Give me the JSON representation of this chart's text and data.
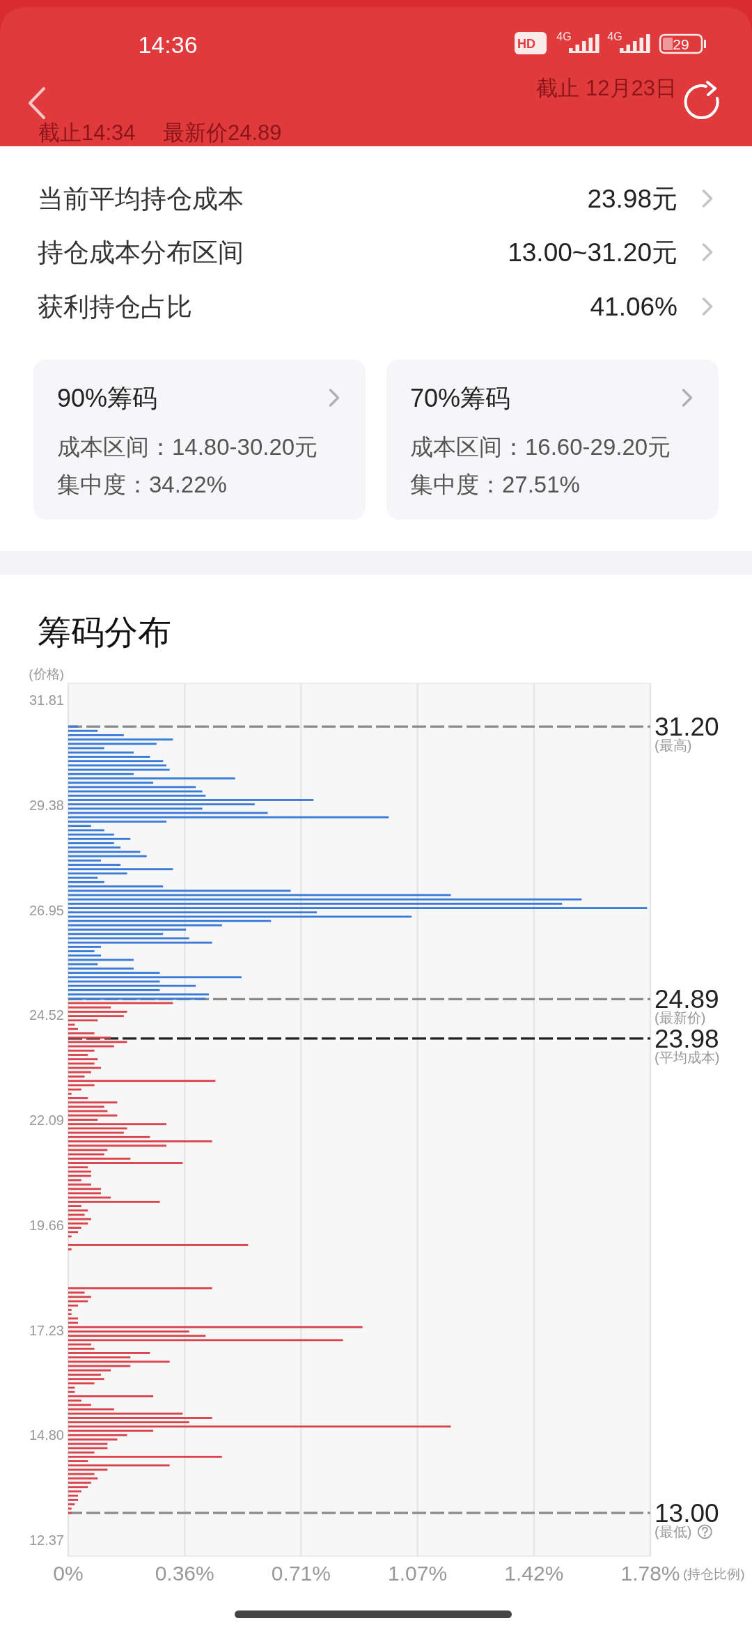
{
  "chart_data": [
    {
      "type": "other",
      "annotations": [
        "14:36",
        "HD",
        "4G",
        "4G",
        "29",
        "截止 12月23日",
        "截止14:34",
        "最新价24.89"
      ]
    },
    {
      "type": "other",
      "annotations": [
        "当前平均持仓成本",
        "23.98元",
        "持仓成本分布区间",
        "13.00~31.20元",
        "获利持仓占比",
        "41.06%"
      ]
    },
    {
      "type": "other",
      "title": "90%筹码",
      "annotations": [
        "成本区间：14.80-30.20元",
        "集中度：34.22%"
      ]
    },
    {
      "type": "other",
      "title": "70%筹码",
      "annotations": [
        "成本区间：16.60-29.20元",
        "集中度：27.51%"
      ]
    },
    {
      "type": "bar",
      "orientation": "horizontal",
      "title": "筹码分布",
      "xlabel": "(持仓比例)",
      "ylabel": "(价格)",
      "xlim": [
        0,
        1.78
      ],
      "xticks": [
        {
          "value": 0,
          "label": "0%"
        },
        {
          "value": 0.356,
          "label": "0.36%"
        },
        {
          "value": 0.712,
          "label": "0.71%"
        },
        {
          "value": 1.068,
          "label": "1.07%"
        },
        {
          "value": 1.424,
          "label": "1.42%"
        },
        {
          "value": 1.78,
          "label": "1.78%"
        }
      ],
      "ylim": [
        12.0,
        32.2
      ],
      "yticks": [
        31.81,
        29.38,
        26.95,
        24.52,
        22.09,
        19.66,
        17.23,
        {
          "value": 14.8,
          "label": "14.80"
        },
        12.37
      ],
      "grid": "x",
      "ref_lines": [
        {
          "axis": "y",
          "value": 31.2,
          "label": "31.20\n(最高)",
          "color": "#8a8a8a",
          "line_style": "dashed"
        },
        {
          "axis": "y",
          "value": 24.89,
          "label": "24.89\n(最新价)",
          "color": "#8a8a8a",
          "line_style": "dashed"
        },
        {
          "axis": "y",
          "value": 23.98,
          "label": "23.98\n(平均成本)",
          "color": "#222222",
          "line_style": "dashed"
        },
        {
          "axis": "y",
          "value": 13.0,
          "label": "13.00\n(最低)",
          "color": "#8a8a8a",
          "line_style": "dashed"
        }
      ],
      "series": [
        {
          "color": "#3b7bd8",
          "x": [
            31.2,
            31.1,
            31.0,
            30.9,
            30.8,
            30.7,
            30.6,
            30.5,
            30.4,
            30.3,
            30.2,
            30.1,
            30.0,
            29.9,
            29.8,
            29.7,
            29.6,
            29.5,
            29.4,
            29.3,
            29.2,
            29.1,
            29.0,
            28.9,
            28.8,
            28.7,
            28.6,
            28.5,
            28.4,
            28.3,
            28.2,
            28.1,
            28.0,
            27.9,
            27.8,
            27.7,
            27.6,
            27.5,
            27.4,
            27.3,
            27.2,
            27.1,
            27.0,
            26.9,
            26.8,
            26.7,
            26.6,
            26.5,
            26.4,
            26.3,
            26.2,
            26.1,
            26.0,
            25.9,
            25.8,
            25.7,
            25.6,
            25.5,
            25.4,
            25.3,
            25.2,
            25.1,
            25.0,
            24.9
          ],
          "values": [
            0.03,
            0.09,
            0.17,
            0.32,
            0.27,
            0.11,
            0.2,
            0.25,
            0.29,
            0.3,
            0.31,
            0.2,
            0.51,
            0.26,
            0.39,
            0.41,
            0.42,
            0.75,
            0.57,
            0.41,
            0.61,
            0.98,
            0.3,
            0.07,
            0.11,
            0.14,
            0.19,
            0.14,
            0.16,
            0.22,
            0.24,
            0.1,
            0.16,
            0.32,
            0.18,
            0.09,
            0.11,
            0.29,
            0.68,
            1.17,
            1.57,
            1.51,
            1.77,
            0.76,
            1.05,
            0.62,
            0.47,
            0.36,
            0.29,
            0.37,
            0.44,
            0.1,
            0.08,
            0.1,
            0.2,
            0.09,
            0.2,
            0.28,
            0.53,
            0.28,
            0.39,
            0.28,
            0.43,
            0.42
          ]
        },
        {
          "color": "#d9434b",
          "x": [
            24.8,
            24.7,
            24.6,
            24.5,
            24.4,
            24.3,
            24.2,
            24.1,
            24.0,
            23.9,
            23.8,
            23.7,
            23.6,
            23.5,
            23.4,
            23.3,
            23.2,
            23.1,
            23.0,
            22.9,
            22.8,
            22.7,
            22.6,
            22.5,
            22.4,
            22.3,
            22.2,
            22.1,
            22.0,
            21.9,
            21.8,
            21.7,
            21.6,
            21.5,
            21.4,
            21.3,
            21.2,
            21.1,
            21.0,
            20.9,
            20.8,
            20.7,
            20.6,
            20.5,
            20.4,
            20.3,
            20.2,
            20.1,
            20.0,
            19.9,
            19.8,
            19.7,
            19.6,
            19.5,
            19.4,
            19.3,
            19.2,
            19.1,
            19.0,
            18.9,
            18.8,
            18.7,
            18.6,
            18.5,
            18.4,
            18.3,
            18.2,
            18.1,
            18.0,
            17.9,
            17.8,
            17.7,
            17.6,
            17.5,
            17.4,
            17.3,
            17.2,
            17.1,
            17.0,
            16.9,
            16.8,
            16.7,
            16.6,
            16.5,
            16.4,
            16.3,
            16.2,
            16.1,
            16.0,
            15.9,
            15.8,
            15.7,
            15.6,
            15.5,
            15.4,
            15.3,
            15.2,
            15.1,
            15.0,
            14.9,
            14.8,
            14.7,
            14.6,
            14.5,
            14.4,
            14.3,
            14.2,
            14.1,
            14.0,
            13.9,
            13.8,
            13.7,
            13.6,
            13.5,
            13.4,
            13.3,
            13.2,
            13.1,
            13.0
          ],
          "values": [
            0.32,
            0.13,
            0.18,
            0.17,
            0.09,
            0.02,
            0.03,
            0.08,
            0.13,
            0.18,
            0.14,
            0.08,
            0.06,
            0.09,
            0.08,
            0.1,
            0.07,
            0.05,
            0.45,
            0.08,
            0.04,
            0.01,
            0.06,
            0.15,
            0.11,
            0.12,
            0.15,
            0.09,
            0.3,
            0.18,
            0.17,
            0.25,
            0.44,
            0.3,
            0.12,
            0.11,
            0.19,
            0.35,
            0.06,
            0.07,
            0.07,
            0.04,
            0.07,
            0.1,
            0.1,
            0.13,
            0.28,
            0.04,
            0.06,
            0.05,
            0.07,
            0.06,
            0.04,
            0.03,
            0.01,
            null,
            0.55,
            0.01,
            null,
            null,
            null,
            null,
            null,
            null,
            null,
            null,
            0.44,
            0.05,
            0.07,
            0.06,
            0.03,
            0.01,
            0.01,
            0.03,
            0.03,
            0.9,
            0.37,
            0.42,
            0.84,
            0.07,
            0.08,
            0.25,
            0.19,
            0.31,
            0.19,
            0.13,
            0.1,
            0.11,
            0.08,
            0.02,
            0.02,
            0.26,
            0.04,
            0.07,
            0.14,
            0.35,
            0.44,
            0.37,
            1.17,
            0.26,
            0.18,
            0.15,
            0.12,
            0.12,
            0.08,
            0.47,
            0.06,
            0.31,
            0.12,
            0.08,
            0.09,
            0.07,
            0.06,
            0.04,
            0.03,
            0.03,
            0.02,
            0.01,
            0.01
          ]
        }
      ]
    }
  ]
}
